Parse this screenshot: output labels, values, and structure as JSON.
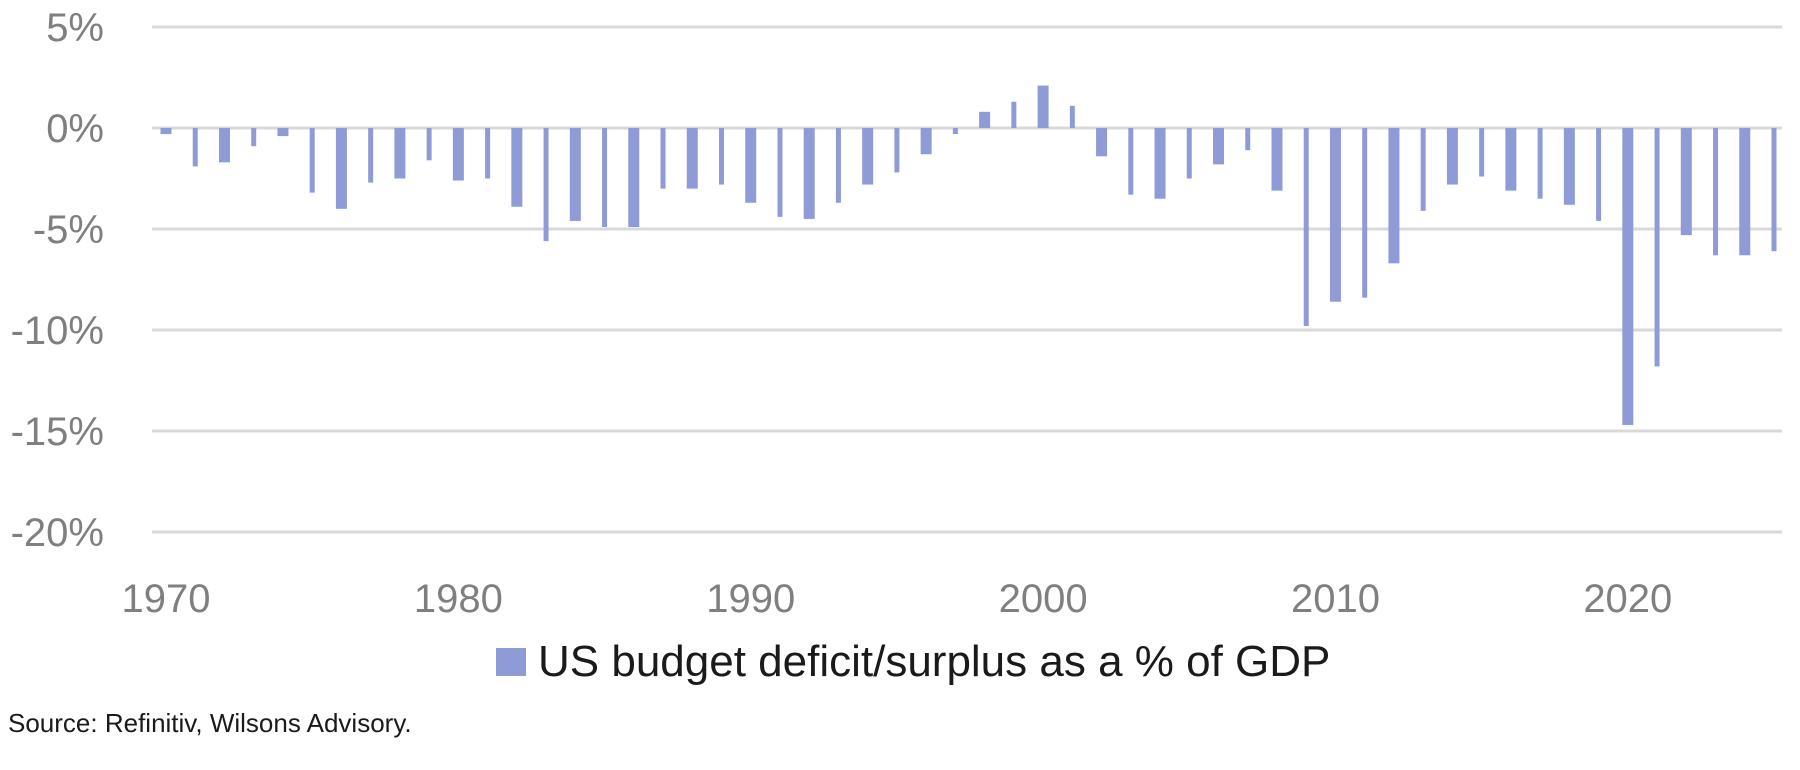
{
  "chart_data": {
    "type": "bar",
    "series": [
      {
        "name": "US budget deficit/surplus as a % of GDP",
        "color": "#8f9bd6",
        "x": [
          1970,
          1971,
          1972,
          1973,
          1974,
          1975,
          1976,
          1977,
          1978,
          1979,
          1980,
          1981,
          1982,
          1983,
          1984,
          1985,
          1986,
          1987,
          1988,
          1989,
          1990,
          1991,
          1992,
          1993,
          1994,
          1995,
          1996,
          1997,
          1998,
          1999,
          2000,
          2001,
          2002,
          2003,
          2004,
          2005,
          2006,
          2007,
          2008,
          2009,
          2010,
          2011,
          2012,
          2013,
          2014,
          2015,
          2016,
          2017,
          2018,
          2019,
          2020,
          2021,
          2022,
          2023,
          2024,
          2025
        ],
        "values": [
          -0.3,
          -1.9,
          -1.7,
          -0.9,
          -0.4,
          -3.2,
          -4.0,
          -2.7,
          -2.5,
          -1.6,
          -2.6,
          -2.5,
          -3.9,
          -5.6,
          -4.6,
          -4.9,
          -4.9,
          -3.0,
          -3.0,
          -2.8,
          -3.7,
          -4.4,
          -4.5,
          -3.7,
          -2.8,
          -2.2,
          -1.3,
          -0.3,
          0.8,
          1.3,
          2.1,
          1.1,
          -1.4,
          -3.3,
          -3.5,
          -2.5,
          -1.8,
          -1.1,
          -3.1,
          -9.8,
          -8.6,
          -8.4,
          -6.7,
          -4.1,
          -2.8,
          -2.4,
          -3.1,
          -3.5,
          -3.8,
          -4.6,
          -14.7,
          -11.8,
          -5.3,
          -6.3,
          -6.3,
          -6.1
        ]
      }
    ],
    "y_ticks": [
      "5%",
      "0%",
      "-5%",
      "-10%",
      "-15%",
      "-20%"
    ],
    "x_ticks": [
      "1970",
      "1980",
      "1990",
      "2000",
      "2010",
      "2020"
    ],
    "ylim": [
      -20,
      5
    ],
    "grid": true,
    "legend": "bottom-center"
  },
  "source_text": "Source: Refinitiv, Wilsons Advisory."
}
